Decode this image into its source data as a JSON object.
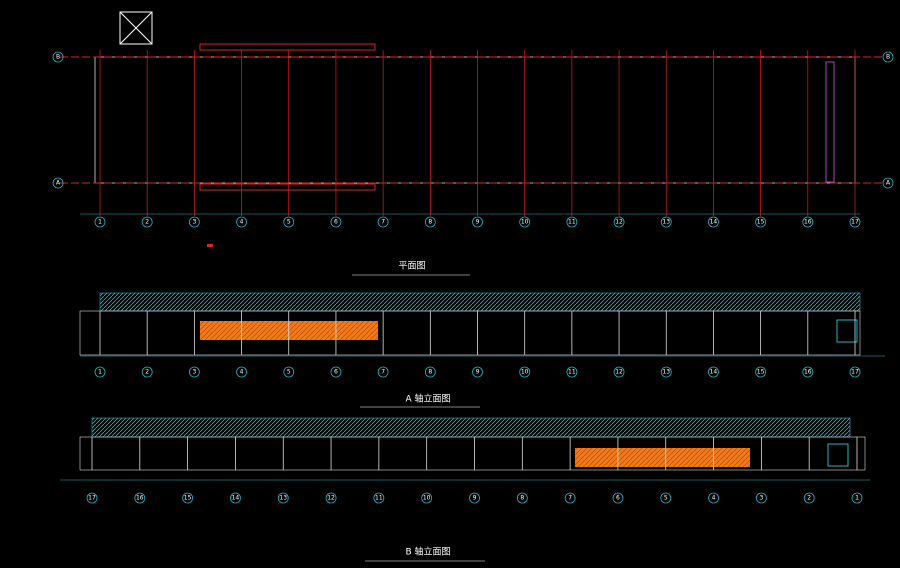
{
  "plan": {
    "title": "平面图",
    "axis_rows": [
      "B",
      "A"
    ],
    "axis_columns": [
      "1",
      "2",
      "3",
      "4",
      "5",
      "6",
      "7",
      "8",
      "9",
      "10",
      "11",
      "12",
      "13",
      "14",
      "15",
      "16",
      "17"
    ]
  },
  "elevation_a": {
    "title": "A 轴立面图"
  },
  "elevation_b": {
    "title": "B 轴立面图"
  }
}
